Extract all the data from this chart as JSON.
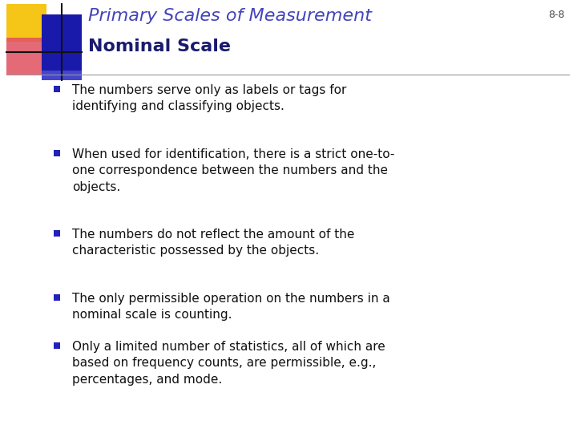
{
  "title_line1": "Primary Scales of Measurement",
  "title_line2": "Nominal Scale",
  "slide_number": "8-8",
  "bg_color": "#ffffff",
  "title_color_italic": "#4444bb",
  "title_color_normal": "#1a1a6e",
  "text_color": "#111111",
  "bullet_color": "#2222bb",
  "bullet_points": [
    "The numbers serve only as labels or tags for\nidentifying and classifying objects.",
    "When used for identification, there is a strict one-to-\none correspondence between the numbers and the\nobjects.",
    "The numbers do not reflect the amount of the\ncharacteristic possessed by the objects.",
    "The only permissible operation on the numbers in a\nnominal scale is counting.",
    "Only a limited number of statistics, all of which are\nbased on frequency counts, are permissible, e.g.,\npercentages, and mode."
  ],
  "deco_yellow": "#f5c518",
  "deco_red": "#e05060",
  "deco_blue_dark": "#1a1aaa",
  "deco_blue_light": "#4444cc",
  "separator_color": "#999999",
  "slide_num_color": "#444444"
}
